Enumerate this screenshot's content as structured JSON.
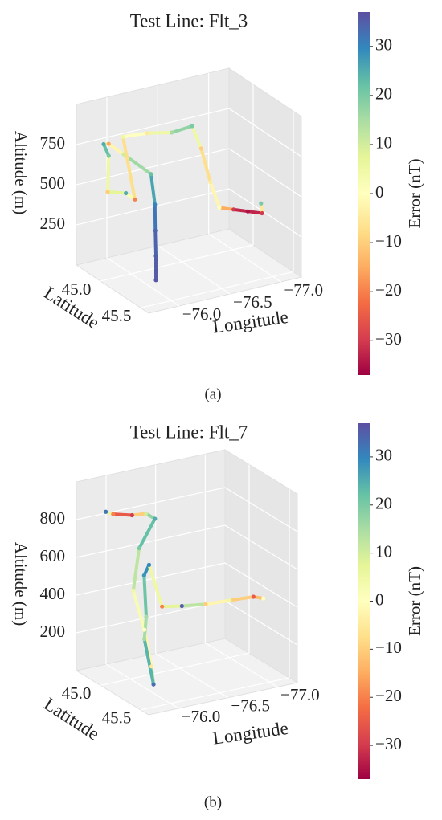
{
  "chart_data": [
    {
      "type": "scatter3d",
      "title": "Test Line: Flt_3",
      "xlabel": "Longitude",
      "ylabel": "Latitude",
      "zlabel": "Altitude (m)",
      "colorbar_label": "Error (nT)",
      "caption": "(a)",
      "colormap": "Spectral",
      "xlim": [
        -75.7,
        -77.2
      ],
      "xticks": [
        {
          "value": -76.0,
          "label": "−76.0"
        },
        {
          "value": -76.5,
          "label": "−76.5"
        },
        {
          "value": -77.0,
          "label": "−77.0"
        }
      ],
      "ylim": [
        44.7,
        45.6
      ],
      "yticks": [
        {
          "value": 45.0,
          "label": "45.0"
        },
        45.5
      ],
      "zlim": [
        0,
        1000
      ],
      "zticks": [
        250,
        500,
        750
      ],
      "clim": [
        -37,
        37
      ],
      "cticks": [
        {
          "value": -30,
          "label": "−30"
        },
        {
          "value": -20,
          "label": "−20"
        },
        {
          "value": -10,
          "label": "−10"
        },
        0,
        10,
        20,
        30
      ],
      "x": [
        -75.85,
        -75.85,
        -75.86,
        -75.88,
        -75.92,
        -75.85,
        -75.82,
        -75.85,
        -75.9,
        -75.85,
        -75.95,
        -76.0,
        -76.0,
        -76.2,
        -76.4,
        -76.6,
        -76.65,
        -76.7,
        -76.75,
        -76.85,
        -76.95,
        -77.05,
        -77.08
      ],
      "y": [
        45.5,
        45.5,
        45.48,
        45.45,
        45.35,
        45.1,
        44.95,
        44.85,
        44.85,
        44.9,
        45.0,
        45.05,
        44.9,
        44.95,
        45.0,
        45.0,
        45.05,
        45.1,
        45.15,
        45.2,
        45.25,
        45.3,
        45.25
      ],
      "z": [
        150,
        300,
        450,
        600,
        750,
        800,
        820,
        780,
        700,
        500,
        510,
        480,
        820,
        830,
        820,
        830,
        700,
        500,
        350,
        340,
        330,
        320,
        360
      ],
      "values": [
        36,
        35,
        34,
        30,
        22,
        10,
        -15,
        25,
        20,
        -10,
        25,
        -20,
        5,
        -5,
        15,
        20,
        -10,
        -5,
        0,
        -30,
        -35,
        -30,
        20
      ]
    },
    {
      "type": "scatter3d",
      "title": "Test Line: Flt_7",
      "xlabel": "Longitude",
      "ylabel": "Latitude",
      "zlabel": "Altitude (m)",
      "colorbar_label": "Error (nT)",
      "caption": "(b)",
      "colormap": "Spectral",
      "xlim": [
        -75.7,
        -77.2
      ],
      "xticks": [
        {
          "value": -76.0,
          "label": "−76.0"
        },
        {
          "value": -76.5,
          "label": "−76.5"
        },
        {
          "value": -77.0,
          "label": "−77.0"
        }
      ],
      "ylim": [
        44.7,
        45.6
      ],
      "yticks": [
        {
          "value": 45.0,
          "label": "45.0"
        },
        45.5
      ],
      "zlim": [
        0,
        1000
      ],
      "zticks": [
        200,
        400,
        600,
        800
      ],
      "clim": [
        -37,
        37
      ],
      "cticks": [
        {
          "value": -30,
          "label": "−30"
        },
        {
          "value": -20,
          "label": "−20"
        },
        {
          "value": -10,
          "label": "−10"
        },
        0,
        10,
        20,
        30
      ],
      "x": [
        -75.9,
        -75.95,
        -76.1,
        -76.2,
        -76.25,
        -76.05,
        -75.95,
        -75.9,
        -75.85,
        -75.83,
        -75.9,
        -76.0,
        -76.1,
        -76.15,
        -76.2,
        -76.4,
        -76.6,
        -76.8,
        -77.0,
        -77.1
      ],
      "y": [
        44.82,
        44.85,
        44.9,
        44.95,
        45.0,
        45.05,
        45.1,
        45.3,
        45.45,
        45.5,
        45.3,
        45.2,
        45.05,
        45.05,
        45.15,
        45.15,
        45.2,
        45.25,
        45.3,
        45.3
      ],
      "z": [
        850,
        840,
        830,
        840,
        820,
        700,
        500,
        350,
        200,
        120,
        300,
        380,
        550,
        600,
        400,
        380,
        380,
        390,
        400,
        380
      ],
      "values": [
        32,
        -20,
        -30,
        10,
        25,
        20,
        5,
        0,
        -5,
        33,
        15,
        15,
        28,
        30,
        -20,
        35,
        -10,
        5,
        -25,
        0
      ]
    }
  ]
}
